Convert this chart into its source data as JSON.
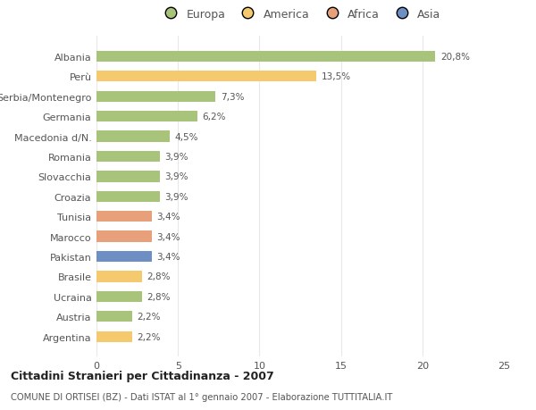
{
  "categories": [
    "Albania",
    "Perù",
    "Serbia/Montenegro",
    "Germania",
    "Macedonia d/N.",
    "Romania",
    "Slovacchia",
    "Croazia",
    "Tunisia",
    "Marocco",
    "Pakistan",
    "Brasile",
    "Ucraina",
    "Austria",
    "Argentina"
  ],
  "values": [
    20.8,
    13.5,
    7.3,
    6.2,
    4.5,
    3.9,
    3.9,
    3.9,
    3.4,
    3.4,
    3.4,
    2.8,
    2.8,
    2.2,
    2.2
  ],
  "colors": [
    "#a8c47a",
    "#f5ca6e",
    "#a8c47a",
    "#a8c47a",
    "#a8c47a",
    "#a8c47a",
    "#a8c47a",
    "#a8c47a",
    "#e8a07a",
    "#e8a07a",
    "#6e8fc4",
    "#f5ca6e",
    "#a8c47a",
    "#a8c47a",
    "#f5ca6e"
  ],
  "labels": [
    "20,8%",
    "13,5%",
    "7,3%",
    "6,2%",
    "4,5%",
    "3,9%",
    "3,9%",
    "3,9%",
    "3,4%",
    "3,4%",
    "3,4%",
    "2,8%",
    "2,8%",
    "2,2%",
    "2,2%"
  ],
  "legend_labels": [
    "Europa",
    "America",
    "Africa",
    "Asia"
  ],
  "legend_colors": [
    "#a8c47a",
    "#f5ca6e",
    "#e8a07a",
    "#6e8fc4"
  ],
  "xlim": [
    0,
    25
  ],
  "xticks": [
    0,
    5,
    10,
    15,
    20,
    25
  ],
  "title": "Cittadini Stranieri per Cittadinanza - 2007",
  "subtitle": "COMUNE DI ORTISEI (BZ) - Dati ISTAT al 1° gennaio 2007 - Elaborazione TUTTITALIA.IT",
  "background_color": "#ffffff",
  "grid_color": "#e8e8e8",
  "label_color": "#555555",
  "bar_height": 0.55
}
